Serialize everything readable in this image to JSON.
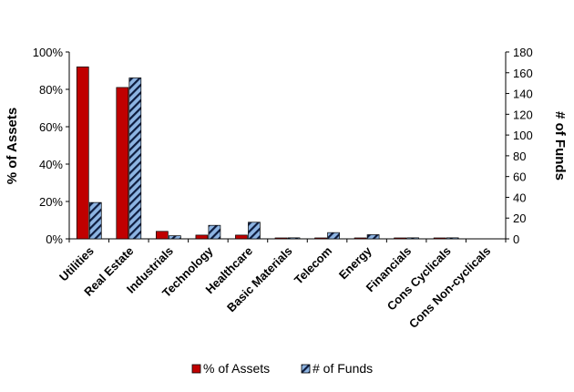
{
  "chart_data": {
    "type": "bar",
    "categories": [
      "Utilities",
      "Real Estate",
      "Industrials",
      "Technology",
      "Healthcare",
      "Basic Materials",
      "Telecom",
      "Energy",
      "Financials",
      "Cons Cyclicals",
      "Cons Non-cyclicals"
    ],
    "series": [
      {
        "name": "% of Assets",
        "axis": "left",
        "color": "#c00000",
        "values": [
          92,
          81,
          4,
          2,
          2,
          0.5,
          0.5,
          0.5,
          0.5,
          0.5,
          0
        ]
      },
      {
        "name": "# of Funds",
        "axis": "right",
        "color": "#8db4e2",
        "pattern": "diagonal-stripes",
        "values": [
          35,
          155,
          3,
          13,
          16,
          1,
          6,
          4,
          1,
          1,
          0
        ]
      }
    ],
    "y_left": {
      "label": "% of Assets",
      "min": 0,
      "max": 100,
      "ticks": [
        "0%",
        "20%",
        "40%",
        "60%",
        "80%",
        "100%"
      ]
    },
    "y_right": {
      "label": "# of Funds",
      "min": 0,
      "max": 180,
      "ticks": [
        "0",
        "20",
        "40",
        "60",
        "80",
        "100",
        "120",
        "140",
        "160",
        "180"
      ]
    },
    "legend": {
      "placement": "bottom",
      "entries": [
        "% of Assets",
        "# of Funds"
      ]
    },
    "grid": false
  }
}
